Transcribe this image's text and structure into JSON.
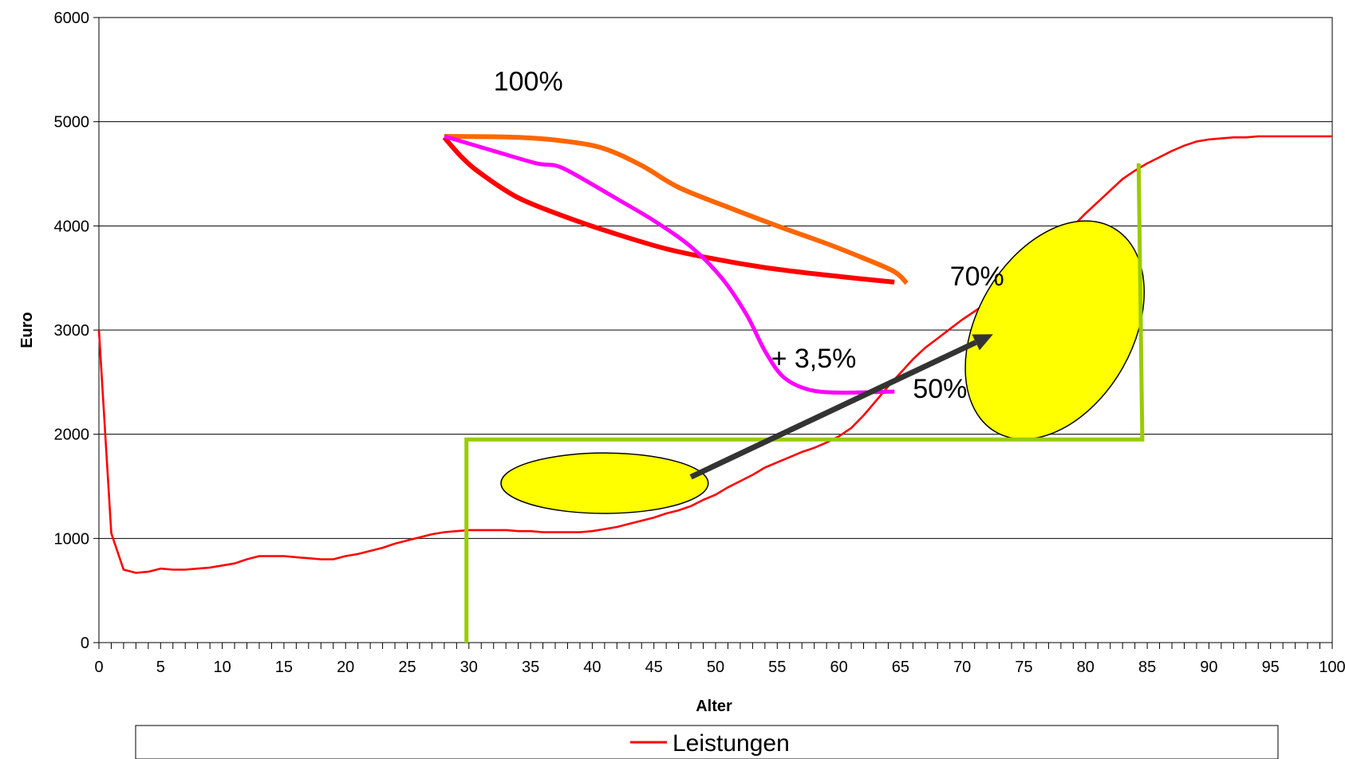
{
  "chart_data": {
    "type": "line",
    "title": "",
    "xlabel": "Alter",
    "ylabel": "Euro",
    "xlim": [
      0,
      100
    ],
    "ylim": [
      0,
      6000
    ],
    "x_ticks": [
      0,
      5,
      10,
      15,
      20,
      25,
      30,
      35,
      40,
      45,
      50,
      55,
      60,
      65,
      70,
      75,
      80,
      85,
      90,
      95,
      100
    ],
    "y_ticks": [
      0,
      1000,
      2000,
      3000,
      4000,
      5000,
      6000
    ],
    "grid": "horizontal",
    "legend_position": "bottom",
    "series": [
      {
        "name": "Leistungen",
        "color": "#ff0000",
        "points": [
          [
            0,
            3000
          ],
          [
            1,
            1050
          ],
          [
            2,
            700
          ],
          [
            3,
            670
          ],
          [
            4,
            680
          ],
          [
            5,
            710
          ],
          [
            6,
            700
          ],
          [
            7,
            700
          ],
          [
            8,
            710
          ],
          [
            9,
            720
          ],
          [
            10,
            740
          ],
          [
            11,
            760
          ],
          [
            12,
            800
          ],
          [
            13,
            830
          ],
          [
            14,
            830
          ],
          [
            15,
            830
          ],
          [
            16,
            820
          ],
          [
            17,
            810
          ],
          [
            18,
            800
          ],
          [
            19,
            800
          ],
          [
            20,
            830
          ],
          [
            21,
            850
          ],
          [
            22,
            880
          ],
          [
            23,
            910
          ],
          [
            24,
            950
          ],
          [
            25,
            980
          ],
          [
            26,
            1010
          ],
          [
            27,
            1040
          ],
          [
            28,
            1060
          ],
          [
            29,
            1070
          ],
          [
            30,
            1080
          ],
          [
            31,
            1080
          ],
          [
            32,
            1080
          ],
          [
            33,
            1080
          ],
          [
            34,
            1070
          ],
          [
            35,
            1070
          ],
          [
            36,
            1060
          ],
          [
            37,
            1060
          ],
          [
            38,
            1060
          ],
          [
            39,
            1060
          ],
          [
            40,
            1070
          ],
          [
            41,
            1090
          ],
          [
            42,
            1110
          ],
          [
            43,
            1140
          ],
          [
            44,
            1170
          ],
          [
            45,
            1200
          ],
          [
            46,
            1240
          ],
          [
            47,
            1270
          ],
          [
            48,
            1310
          ],
          [
            49,
            1370
          ],
          [
            50,
            1420
          ],
          [
            51,
            1490
          ],
          [
            52,
            1550
          ],
          [
            53,
            1610
          ],
          [
            54,
            1680
          ],
          [
            55,
            1730
          ],
          [
            56,
            1780
          ],
          [
            57,
            1830
          ],
          [
            58,
            1870
          ],
          [
            59,
            1920
          ],
          [
            60,
            1980
          ],
          [
            61,
            2060
          ],
          [
            62,
            2180
          ],
          [
            63,
            2320
          ],
          [
            64,
            2460
          ],
          [
            65,
            2590
          ],
          [
            66,
            2720
          ],
          [
            67,
            2830
          ],
          [
            68,
            2920
          ],
          [
            69,
            3010
          ],
          [
            70,
            3100
          ],
          [
            71,
            3180
          ],
          [
            72,
            3260
          ],
          [
            73,
            3360
          ],
          [
            74,
            3460
          ],
          [
            75,
            3560
          ],
          [
            76,
            3670
          ],
          [
            77,
            3780
          ],
          [
            78,
            3890
          ],
          [
            79,
            4000
          ],
          [
            80,
            4120
          ],
          [
            81,
            4230
          ],
          [
            82,
            4340
          ],
          [
            83,
            4450
          ],
          [
            84,
            4530
          ],
          [
            85,
            4600
          ],
          [
            86,
            4660
          ],
          [
            87,
            4720
          ],
          [
            88,
            4770
          ],
          [
            89,
            4810
          ],
          [
            90,
            4830
          ],
          [
            91,
            4840
          ],
          [
            92,
            4850
          ],
          [
            93,
            4850
          ],
          [
            94,
            4860
          ],
          [
            95,
            4860
          ],
          [
            96,
            4860
          ],
          [
            97,
            4860
          ],
          [
            98,
            4860
          ],
          [
            99,
            4860
          ],
          [
            100,
            4860
          ]
        ]
      }
    ],
    "annotations": {
      "labels": [
        {
          "text": "100%",
          "x": 32,
          "y": 5300
        },
        {
          "text": "70%",
          "x": 69,
          "y": 3430
        },
        {
          "text": "+ 3,5%",
          "x": 54.5,
          "y": 2640
        },
        {
          "text": "50%",
          "x": 66,
          "y": 2350
        }
      ],
      "curve_orange": {
        "color": "#ff6600",
        "points": [
          [
            28,
            4860
          ],
          [
            34,
            4850
          ],
          [
            38,
            4810
          ],
          [
            41,
            4740
          ],
          [
            44,
            4580
          ],
          [
            47,
            4370
          ],
          [
            51,
            4180
          ],
          [
            55,
            4000
          ],
          [
            59,
            3830
          ],
          [
            62,
            3690
          ],
          [
            64.5,
            3560
          ],
          [
            65.5,
            3450
          ]
        ]
      },
      "curve_red": {
        "color": "#ff0000",
        "points": [
          [
            28,
            4850
          ],
          [
            29.5,
            4650
          ],
          [
            31,
            4500
          ],
          [
            34,
            4270
          ],
          [
            38,
            4080
          ],
          [
            42,
            3920
          ],
          [
            46,
            3780
          ],
          [
            50,
            3680
          ],
          [
            54,
            3600
          ],
          [
            58,
            3540
          ],
          [
            62,
            3490
          ],
          [
            64.5,
            3460
          ]
        ]
      },
      "curve_magenta": {
        "color": "#ff00ff",
        "points": [
          [
            28,
            4860
          ],
          [
            32,
            4720
          ],
          [
            35.5,
            4600
          ],
          [
            37,
            4580
          ],
          [
            38.5,
            4500
          ],
          [
            42,
            4260
          ],
          [
            45,
            4050
          ],
          [
            48,
            3800
          ],
          [
            50.5,
            3500
          ],
          [
            52.5,
            3150
          ],
          [
            54,
            2800
          ],
          [
            55.5,
            2550
          ],
          [
            57.5,
            2430
          ],
          [
            60,
            2400
          ],
          [
            64.5,
            2410
          ]
        ]
      },
      "bracket_green": {
        "color": "#99cc00",
        "points": [
          [
            29.8,
            0
          ],
          [
            29.8,
            1950
          ],
          [
            84.6,
            1950
          ],
          [
            84.3,
            4600
          ]
        ]
      },
      "arrow": {
        "color": "#333333",
        "from": [
          48,
          1590
        ],
        "to": [
          72.5,
          2960
        ]
      },
      "ellipses": [
        {
          "color": "#ffff00",
          "cx": 41,
          "cy": 1530,
          "rx_units": 8.4,
          "ry_units": 290,
          "rotation": 0
        },
        {
          "color": "#ffff00",
          "cx": 77.5,
          "cy": 3000,
          "rx_units": 6.3,
          "ry_units": 1130,
          "rotation": 30
        }
      ]
    }
  }
}
